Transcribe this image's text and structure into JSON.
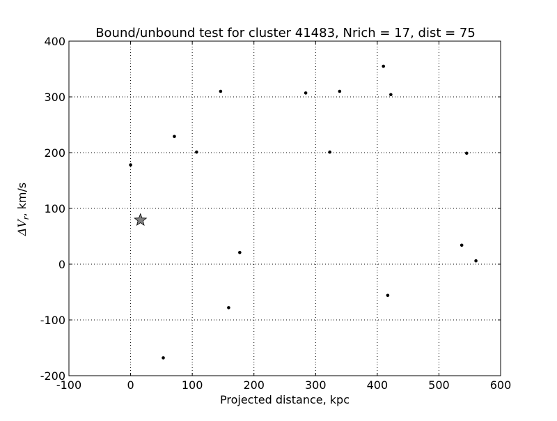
{
  "chart_data": {
    "type": "scatter",
    "title": "Bound/unbound test for cluster 41483, Nrich = 17, dist = 75",
    "xlabel": "Projected distance, kpc",
    "ylabel_symbol": "ΔV",
    "ylabel_sub": "r",
    "ylabel_rest": ", km/s",
    "xlim": [
      -100,
      600
    ],
    "ylim": [
      -200,
      400
    ],
    "xticks": [
      -100,
      0,
      100,
      200,
      300,
      400,
      500,
      600
    ],
    "yticks": [
      -200,
      -100,
      0,
      100,
      200,
      300,
      400
    ],
    "grid": true,
    "grid_style": "dotted",
    "point_color": "#000000",
    "star_color": "#808080",
    "points": [
      {
        "x": 0,
        "y": 178
      },
      {
        "x": 71,
        "y": 229
      },
      {
        "x": 107,
        "y": 201
      },
      {
        "x": 146,
        "y": 310
      },
      {
        "x": 284,
        "y": 307
      },
      {
        "x": 339,
        "y": 310
      },
      {
        "x": 323,
        "y": 201
      },
      {
        "x": 410,
        "y": 355
      },
      {
        "x": 422,
        "y": 304
      },
      {
        "x": 545,
        "y": 199
      },
      {
        "x": 537,
        "y": 34
      },
      {
        "x": 560,
        "y": 6
      },
      {
        "x": 417,
        "y": -56
      },
      {
        "x": 177,
        "y": 21
      },
      {
        "x": 159,
        "y": -78
      },
      {
        "x": 53,
        "y": -168
      }
    ],
    "star": {
      "x": 16,
      "y": 79
    }
  }
}
